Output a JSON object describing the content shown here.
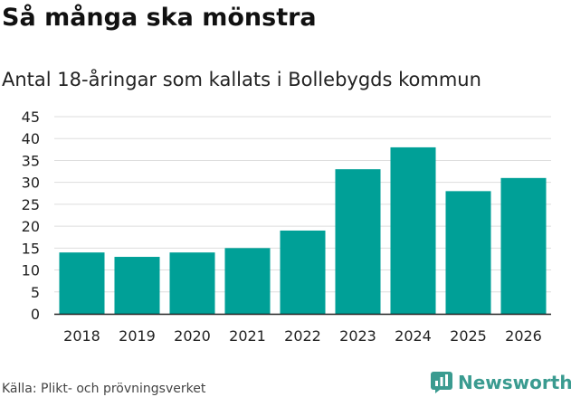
{
  "header": {
    "title": "Så många ska mönstra",
    "subtitle": "Antal 18-åringar som kallats i Bollebygds kommun"
  },
  "footer": {
    "source": "Källa: Plikt- och prövningsverket",
    "brand": "Newsworthy",
    "brand_color": "#3a9b90"
  },
  "colors": {
    "bar": "#00a097",
    "grid": "#dddddd",
    "axis": "#222222"
  },
  "chart_data": {
    "type": "bar",
    "title": "Så många ska mönstra",
    "subtitle": "Antal 18-åringar som kallats i Bollebygds kommun",
    "xlabel": "",
    "ylabel": "",
    "categories": [
      "2018",
      "2019",
      "2020",
      "2021",
      "2022",
      "2023",
      "2024",
      "2025",
      "2026"
    ],
    "values": [
      14,
      13,
      14,
      15,
      19,
      33,
      38,
      28,
      31
    ],
    "ylim": [
      0,
      45
    ],
    "yticks": [
      0,
      5,
      10,
      15,
      20,
      25,
      30,
      35,
      40,
      45
    ],
    "grid": true,
    "legend": "none"
  }
}
